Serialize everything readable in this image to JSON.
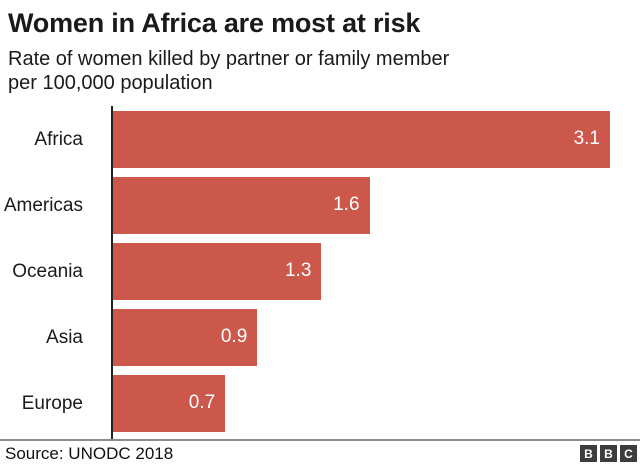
{
  "header": {
    "title": "Women in Africa are most at risk",
    "subtitle_line1": "Rate of women killed by partner or family member",
    "subtitle_line2": "per 100,000 population"
  },
  "chart_data": {
    "type": "bar",
    "orientation": "horizontal",
    "title": "Women in Africa are most at risk",
    "subtitle": "Rate of women killed by partner or family member per 100,000 population",
    "categories": [
      "Africa",
      "Americas",
      "Oceania",
      "Asia",
      "Europe"
    ],
    "values": [
      3.1,
      1.6,
      1.3,
      0.9,
      0.7
    ],
    "value_labels": [
      "3.1",
      "1.6",
      "1.3",
      "0.9",
      "0.7"
    ],
    "xlabel": "",
    "ylabel": "",
    "xlim": [
      0,
      3.1
    ],
    "grid": false,
    "legend": "none",
    "bar_color": "#cc584c",
    "value_label_position": "inside-end"
  },
  "footer": {
    "source": "Source: UNODC 2018",
    "logo_letters": [
      "B",
      "B",
      "C"
    ]
  },
  "colors": {
    "bar": "#cc584c",
    "axis": "#222222",
    "divider": "#8c8c8c",
    "text": "#1a1a1a",
    "value_text": "#ffffff",
    "logo_bg": "#3d3d3d"
  }
}
